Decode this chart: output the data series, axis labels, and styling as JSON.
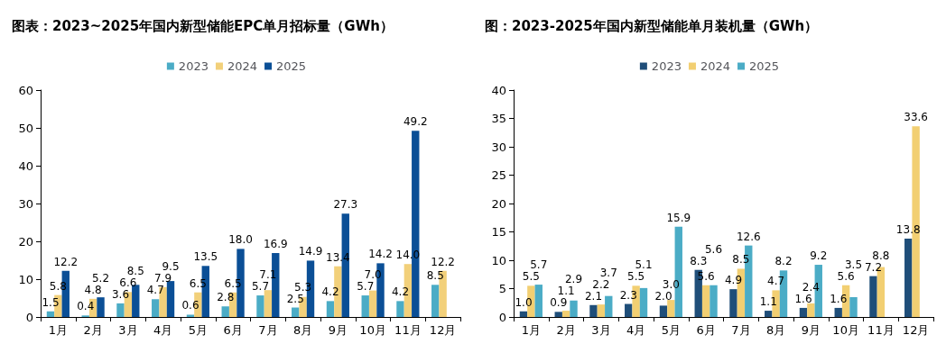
{
  "chart_data": [
    {
      "type": "bar",
      "title": "图表：2023~2025年国内新型储能EPC单月招标量（GWh）",
      "categories": [
        "1月",
        "2月",
        "3月",
        "4月",
        "5月",
        "6月",
        "7月",
        "8月",
        "9月",
        "10月",
        "11月",
        "12月"
      ],
      "series": [
        {
          "name": "2023",
          "color": "#4bacc6",
          "values": [
            1.5,
            0.4,
            3.6,
            4.7,
            0.6,
            2.8,
            5.7,
            2.5,
            4.2,
            5.7,
            4.2,
            8.5
          ],
          "value_labels": [
            "1.5",
            "0.4",
            "3.6",
            "4.7",
            "0.6",
            "2.8",
            "5.7",
            "2.5",
            "4.2",
            "5.7",
            "4.2",
            "8.5"
          ]
        },
        {
          "name": "2024",
          "color": "#f2d07a",
          "values": [
            5.8,
            4.8,
            6.6,
            7.9,
            6.5,
            6.5,
            7.1,
            5.3,
            13.4,
            7.0,
            14.0,
            12.2
          ],
          "value_labels": [
            "5.8",
            "4.8",
            "6.6",
            "7.9",
            "6.5",
            "6.5",
            "7.1",
            "5.3",
            "13.4",
            "7.0",
            "14.0",
            "12.2"
          ]
        },
        {
          "name": "2025",
          "color": "#0b4f96",
          "values": [
            12.2,
            5.2,
            8.5,
            9.5,
            13.5,
            18.0,
            16.9,
            14.9,
            27.3,
            14.2,
            49.2,
            null
          ],
          "value_labels": [
            "12.2",
            "5.2",
            "8.5",
            "9.5",
            "13.5",
            "18.0",
            "16.9",
            "14.9",
            "27.3",
            "14.2",
            "49.2",
            null
          ]
        }
      ],
      "ylim": [
        0,
        60
      ],
      "yticks": [
        0,
        10,
        20,
        30,
        40,
        50,
        60
      ],
      "grid": false,
      "legend": "top"
    },
    {
      "type": "bar",
      "title": "图：2023-2025年国内新型储能单月装机量（GWh）",
      "categories": [
        "1月",
        "2月",
        "3月",
        "4月",
        "5月",
        "6月",
        "7月",
        "8月",
        "9月",
        "10月",
        "11月",
        "12月"
      ],
      "series": [
        {
          "name": "2023",
          "color": "#1f4e79",
          "values": [
            1.0,
            0.9,
            2.1,
            2.3,
            2.0,
            8.3,
            4.9,
            1.1,
            1.6,
            1.6,
            7.2,
            13.8
          ],
          "value_labels": [
            "1.0",
            "0.9",
            "2.1",
            "2.3",
            "2.0",
            "8.3",
            "4.9",
            "1.1",
            "1.6",
            "1.6",
            "7.2",
            "13.8"
          ]
        },
        {
          "name": "2024",
          "color": "#f2cf72",
          "values": [
            5.5,
            1.1,
            2.2,
            5.5,
            3.0,
            5.6,
            8.5,
            4.7,
            2.4,
            5.6,
            8.8,
            33.6
          ],
          "value_labels": [
            "5.5",
            "1.1",
            "2.2",
            "5.5",
            "3.0",
            "5.6",
            "8.5",
            "4.7",
            "2.4",
            "5.6",
            "8.8",
            "33.6"
          ]
        },
        {
          "name": "2025",
          "color": "#4bacc6",
          "values": [
            5.7,
            2.9,
            3.7,
            5.1,
            15.9,
            5.6,
            12.6,
            8.2,
            9.2,
            3.5,
            null,
            null
          ],
          "value_labels": [
            "5.7",
            "2.9",
            "3.7",
            "5.1",
            "15.9",
            "5.6",
            "12.6",
            "8.2",
            "9.2",
            "3.5",
            null,
            null
          ]
        }
      ],
      "ylim": [
        0,
        40
      ],
      "yticks": [
        0,
        5,
        10,
        15,
        20,
        25,
        30,
        35,
        40
      ],
      "grid": false,
      "legend": "top"
    }
  ]
}
